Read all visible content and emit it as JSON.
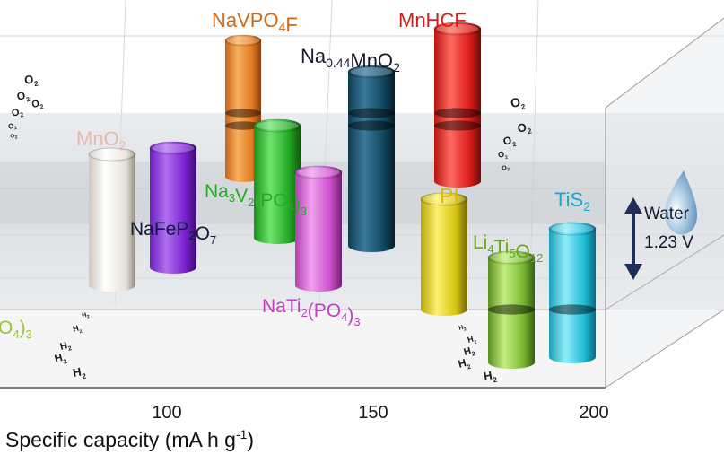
{
  "chart_data": {
    "type": "3d-cylinder",
    "xlabel": "Specific capacity (mA h g",
    "xlabel_sup": "-1",
    "xlabel_close": ")",
    "x_ticks": [
      "100",
      "150",
      "200"
    ],
    "xlim_visible": [
      60,
      200
    ],
    "water_window": {
      "label_line1": "Water",
      "label_line2": "1.23 V",
      "value_V": 1.23
    },
    "gas_labels": {
      "oxygen": "O",
      "oxygen_sub": "2",
      "hydrogen": "H",
      "hydrogen_sub": "2"
    },
    "series": [
      {
        "name": "MnO2",
        "base": "MnO",
        "sub": "2",
        "capacity": 90,
        "color": "#f2ece4"
      },
      {
        "name": "NaFeP2O7",
        "capacity": 97,
        "color": "#8a2be2"
      },
      {
        "name": "NaVPO4F",
        "capacity": 118,
        "color": "#e8801e"
      },
      {
        "name": "Na3V2(PO4)3",
        "capacity": 123,
        "color": "#27b427"
      },
      {
        "name": "NaTi2(PO4)3",
        "capacity": 132,
        "color": "#d05ad0"
      },
      {
        "name": "Na0.44MnO2",
        "capacity": 143,
        "color": "#15506e"
      },
      {
        "name": "MnHCF",
        "capacity": 165,
        "color": "#e0201c"
      },
      {
        "name": "PI",
        "capacity": 166,
        "color": "#e0cc10"
      },
      {
        "name": "Li4Ti5O12",
        "capacity": 177,
        "color": "#86c03a"
      },
      {
        "name": "TiS2",
        "capacity": 192,
        "color": "#22c2dc"
      }
    ],
    "partial_label": {
      "text": "O",
      "sub": "4",
      "close": ")",
      "sub2": "3"
    }
  }
}
